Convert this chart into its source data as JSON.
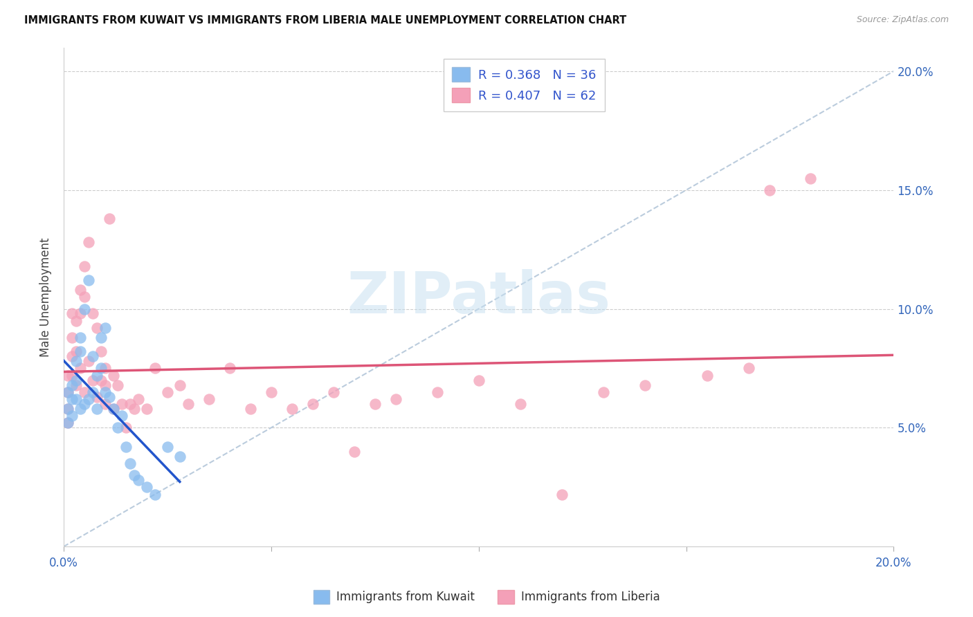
{
  "title": "IMMIGRANTS FROM KUWAIT VS IMMIGRANTS FROM LIBERIA MALE UNEMPLOYMENT CORRELATION CHART",
  "source": "Source: ZipAtlas.com",
  "ylabel": "Male Unemployment",
  "xlim": [
    0.0,
    0.2
  ],
  "ylim": [
    0.0,
    0.21
  ],
  "kuwait_color": "#88bbee",
  "liberia_color": "#f4a0b8",
  "kuwait_line_color": "#2255cc",
  "liberia_line_color": "#dd5577",
  "diag_line_color": "#bbccdd",
  "legend_R_kuwait": "R = 0.368",
  "legend_N_kuwait": "N = 36",
  "legend_R_liberia": "R = 0.407",
  "legend_N_liberia": "N = 62",
  "legend_label_kuwait": "Immigrants from Kuwait",
  "legend_label_liberia": "Immigrants from Liberia",
  "watermark": "ZIPatlas",
  "kuwait_x": [
    0.001,
    0.001,
    0.001,
    0.002,
    0.002,
    0.002,
    0.003,
    0.003,
    0.003,
    0.004,
    0.004,
    0.004,
    0.005,
    0.005,
    0.006,
    0.006,
    0.007,
    0.007,
    0.008,
    0.008,
    0.009,
    0.009,
    0.01,
    0.01,
    0.011,
    0.012,
    0.013,
    0.014,
    0.015,
    0.016,
    0.017,
    0.018,
    0.02,
    0.022,
    0.025,
    0.028
  ],
  "kuwait_y": [
    0.065,
    0.058,
    0.052,
    0.068,
    0.062,
    0.055,
    0.078,
    0.07,
    0.062,
    0.088,
    0.082,
    0.058,
    0.1,
    0.06,
    0.112,
    0.062,
    0.08,
    0.065,
    0.072,
    0.058,
    0.088,
    0.075,
    0.092,
    0.065,
    0.063,
    0.058,
    0.05,
    0.055,
    0.042,
    0.035,
    0.03,
    0.028,
    0.025,
    0.022,
    0.042,
    0.038
  ],
  "liberia_x": [
    0.001,
    0.001,
    0.001,
    0.001,
    0.002,
    0.002,
    0.002,
    0.002,
    0.003,
    0.003,
    0.003,
    0.004,
    0.004,
    0.004,
    0.005,
    0.005,
    0.005,
    0.006,
    0.006,
    0.007,
    0.007,
    0.008,
    0.008,
    0.009,
    0.009,
    0.01,
    0.01,
    0.01,
    0.011,
    0.012,
    0.012,
    0.013,
    0.014,
    0.015,
    0.016,
    0.017,
    0.018,
    0.02,
    0.022,
    0.025,
    0.028,
    0.03,
    0.035,
    0.04,
    0.045,
    0.05,
    0.055,
    0.06,
    0.065,
    0.07,
    0.075,
    0.08,
    0.09,
    0.1,
    0.11,
    0.12,
    0.13,
    0.14,
    0.155,
    0.165,
    0.17,
    0.18
  ],
  "liberia_y": [
    0.072,
    0.065,
    0.058,
    0.052,
    0.098,
    0.088,
    0.08,
    0.072,
    0.095,
    0.082,
    0.068,
    0.108,
    0.098,
    0.075,
    0.118,
    0.105,
    0.065,
    0.128,
    0.078,
    0.098,
    0.07,
    0.092,
    0.063,
    0.082,
    0.07,
    0.075,
    0.068,
    0.06,
    0.138,
    0.072,
    0.058,
    0.068,
    0.06,
    0.05,
    0.06,
    0.058,
    0.062,
    0.058,
    0.075,
    0.065,
    0.068,
    0.06,
    0.062,
    0.075,
    0.058,
    0.065,
    0.058,
    0.06,
    0.065,
    0.04,
    0.06,
    0.062,
    0.065,
    0.07,
    0.06,
    0.022,
    0.065,
    0.068,
    0.072,
    0.075,
    0.15,
    0.155
  ]
}
